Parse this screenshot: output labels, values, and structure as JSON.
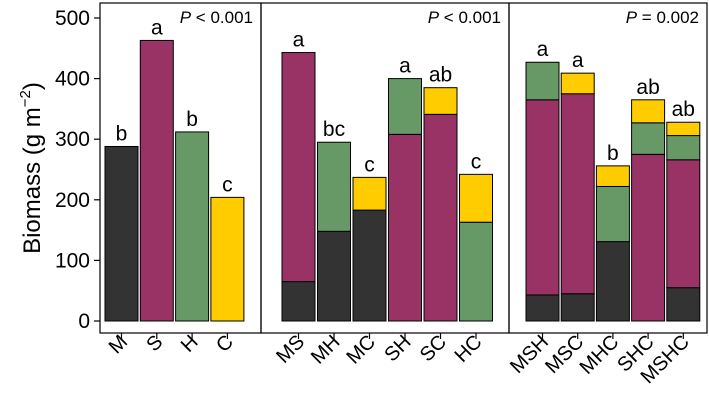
{
  "chart_data": {
    "type": "bar",
    "stacked": true,
    "ylabel": "Biomass (g m",
    "ylabel_sup": "−2",
    "ylabel_close": ")",
    "ylim": [
      0,
      500
    ],
    "yticks": [
      0,
      100,
      200,
      300,
      400,
      500
    ],
    "grid": false,
    "colors": {
      "M": "#333333",
      "S": "#993366",
      "H": "#669966",
      "C": "#ffcc00"
    },
    "panels": [
      {
        "p_italic": "P",
        "p_value": " < 0.001",
        "bars": [
          {
            "label": "M",
            "letter": "b",
            "segments": [
              {
                "species": "M",
                "value": 288
              }
            ]
          },
          {
            "label": "S",
            "letter": "a",
            "segments": [
              {
                "species": "S",
                "value": 463
              }
            ]
          },
          {
            "label": "H",
            "letter": "b",
            "segments": [
              {
                "species": "H",
                "value": 312
              }
            ]
          },
          {
            "label": "C",
            "letter": "c",
            "segments": [
              {
                "species": "C",
                "value": 204
              }
            ]
          }
        ]
      },
      {
        "p_italic": "P",
        "p_value": " < 0.001",
        "bars": [
          {
            "label": "MS",
            "letter": "a",
            "segments": [
              {
                "species": "M",
                "value": 65
              },
              {
                "species": "S",
                "value": 378
              }
            ]
          },
          {
            "label": "MH",
            "letter": "bc",
            "segments": [
              {
                "species": "M",
                "value": 148
              },
              {
                "species": "H",
                "value": 147
              }
            ]
          },
          {
            "label": "MC",
            "letter": "c",
            "segments": [
              {
                "species": "M",
                "value": 183
              },
              {
                "species": "C",
                "value": 54
              }
            ]
          },
          {
            "label": "SH",
            "letter": "a",
            "segments": [
              {
                "species": "S",
                "value": 308
              },
              {
                "species": "H",
                "value": 92
              }
            ]
          },
          {
            "label": "SC",
            "letter": "ab",
            "segments": [
              {
                "species": "S",
                "value": 341
              },
              {
                "species": "C",
                "value": 44
              }
            ]
          },
          {
            "label": "HC",
            "letter": "c",
            "segments": [
              {
                "species": "H",
                "value": 163
              },
              {
                "species": "C",
                "value": 79
              }
            ]
          }
        ]
      },
      {
        "p_italic": "P",
        "p_value": " = 0.002",
        "bars": [
          {
            "label": "MSH",
            "letter": "a",
            "segments": [
              {
                "species": "M",
                "value": 43
              },
              {
                "species": "S",
                "value": 322
              },
              {
                "species": "H",
                "value": 62
              }
            ]
          },
          {
            "label": "MSC",
            "letter": "a",
            "segments": [
              {
                "species": "M",
                "value": 45
              },
              {
                "species": "S",
                "value": 330
              },
              {
                "species": "C",
                "value": 34
              }
            ]
          },
          {
            "label": "MHC",
            "letter": "b",
            "segments": [
              {
                "species": "M",
                "value": 131
              },
              {
                "species": "H",
                "value": 91
              },
              {
                "species": "C",
                "value": 34
              }
            ]
          },
          {
            "label": "SHC",
            "letter": "ab",
            "segments": [
              {
                "species": "S",
                "value": 275
              },
              {
                "species": "H",
                "value": 52
              },
              {
                "species": "C",
                "value": 38
              }
            ]
          },
          {
            "label": "MSHC",
            "letter": "ab",
            "segments": [
              {
                "species": "M",
                "value": 55
              },
              {
                "species": "S",
                "value": 211
              },
              {
                "species": "H",
                "value": 40
              },
              {
                "species": "C",
                "value": 22
              }
            ]
          }
        ]
      }
    ]
  }
}
